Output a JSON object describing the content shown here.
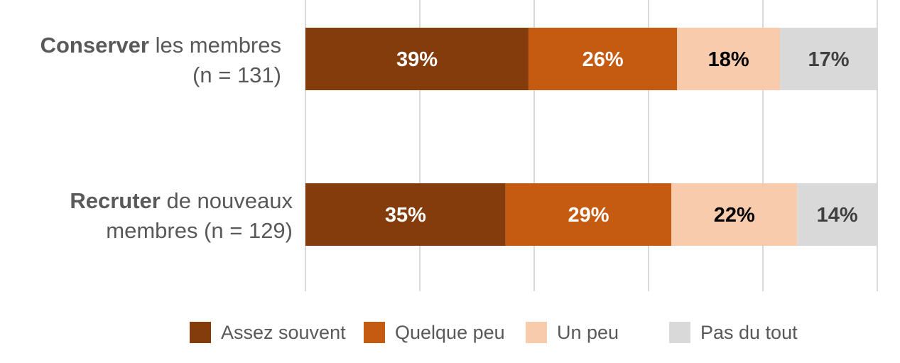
{
  "chart_data": {
    "type": "bar",
    "orientation": "horizontal",
    "stacked": true,
    "title": "",
    "xlabel": "",
    "ylabel": "",
    "xlim": [
      0,
      100
    ],
    "grid": true,
    "legend_position": "bottom",
    "categories": [
      {
        "bold": "Conserver",
        "rest_line1": " les membres",
        "line2": "(n = 131)"
      },
      {
        "bold": "Recruter",
        "rest_line1": " de nouveaux",
        "line2": "membres (n = 129)"
      }
    ],
    "series": [
      {
        "name": "Assez souvent",
        "color": "#843C0C",
        "label_color": "#ffffff",
        "values": [
          39,
          35
        ],
        "labels": [
          "39%",
          "35%"
        ]
      },
      {
        "name": "Quelque peu",
        "color": "#C55A11",
        "label_color": "#ffffff",
        "values": [
          26,
          29
        ],
        "labels": [
          "26%",
          "29%"
        ]
      },
      {
        "name": "Un peu",
        "color": "#F8CBAD",
        "label_color": "#000000",
        "values": [
          18,
          22
        ],
        "labels": [
          "18%",
          "22%"
        ]
      },
      {
        "name": "Pas du tout",
        "color": "#D9D9D9",
        "label_color": "#404040",
        "values": [
          17,
          14
        ],
        "labels": [
          "17%",
          "14%"
        ]
      }
    ]
  }
}
